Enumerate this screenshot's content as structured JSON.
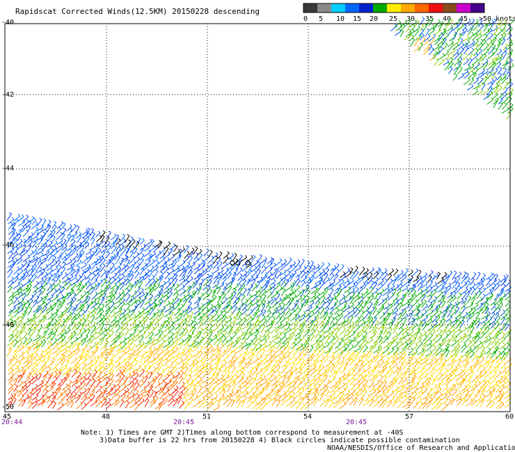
{
  "title": "Rapidscat Corrected Winds(12.5KM) 20150228 descending",
  "colorbar": {
    "labels": [
      "0",
      "5",
      "10",
      "15",
      "20",
      "25",
      "30",
      "35",
      "40",
      "45",
      ">50 knots"
    ],
    "colors": [
      "#3a3a3a",
      "#8a8a8a",
      "#00ccff",
      "#0066ff",
      "#0022cc",
      "#00aa00",
      "#ffee00",
      "#ffaa00",
      "#ff6600",
      "#ee1111",
      "#8a4a1a",
      "#cc00cc",
      "#440088"
    ]
  },
  "axes": {
    "lat_labels": [
      "-40",
      "-42",
      "-44",
      "-46",
      "-48",
      "-50"
    ],
    "lon_labels": [
      "45",
      "48",
      "51",
      "54",
      "57",
      "60"
    ],
    "time_labels": [
      "20:44",
      "20:45",
      "20:45"
    ]
  },
  "notes": {
    "line1": "Note: 1) Times are GMT 2)Times along bottom correspond to measurement at -40S",
    "line2": "3)Data buffer is 22 hrs from 20150228 4) Black circles indicate possible contamination",
    "line3": "NOAA/NESDIS/Office of Research and Applications"
  }
}
